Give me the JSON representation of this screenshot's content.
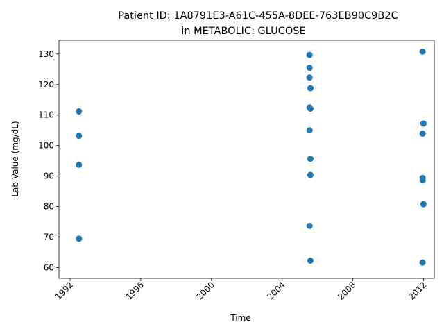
{
  "chart_data": {
    "type": "scatter",
    "title_lines": [
      "Patient ID: 1A8791E3-A61C-455A-8DEE-763EB90C9B2C",
      "in METABOLIC: GLUCOSE"
    ],
    "xlabel": "Time",
    "ylabel": "Lab Value (mg/dL)",
    "x_is_year": true,
    "xlim": [
      1991.37,
      2012.61
    ],
    "ylim": [
      56.5,
      134.5
    ],
    "xticks": [
      1992,
      1996,
      2000,
      2004,
      2008,
      2012
    ],
    "yticks": [
      60,
      70,
      80,
      90,
      100,
      110,
      120,
      130
    ],
    "grid": false,
    "marker_color": "#1f77b4",
    "points": [
      {
        "x": 1992.5,
        "y": 111.2
      },
      {
        "x": 1992.5,
        "y": 103.2
      },
      {
        "x": 1992.5,
        "y": 93.7
      },
      {
        "x": 1992.5,
        "y": 69.5
      },
      {
        "x": 2005.55,
        "y": 129.7
      },
      {
        "x": 2005.55,
        "y": 125.5
      },
      {
        "x": 2005.55,
        "y": 122.3
      },
      {
        "x": 2005.6,
        "y": 118.8
      },
      {
        "x": 2005.55,
        "y": 112.5
      },
      {
        "x": 2005.6,
        "y": 112.1
      },
      {
        "x": 2005.55,
        "y": 105.0
      },
      {
        "x": 2005.6,
        "y": 95.7
      },
      {
        "x": 2005.6,
        "y": 90.4
      },
      {
        "x": 2005.55,
        "y": 73.7
      },
      {
        "x": 2005.6,
        "y": 62.3
      },
      {
        "x": 2011.95,
        "y": 130.8
      },
      {
        "x": 2012.0,
        "y": 107.2
      },
      {
        "x": 2011.95,
        "y": 103.9
      },
      {
        "x": 2011.95,
        "y": 89.4
      },
      {
        "x": 2011.95,
        "y": 88.6
      },
      {
        "x": 2012.0,
        "y": 80.8
      },
      {
        "x": 2011.95,
        "y": 61.7
      }
    ]
  }
}
